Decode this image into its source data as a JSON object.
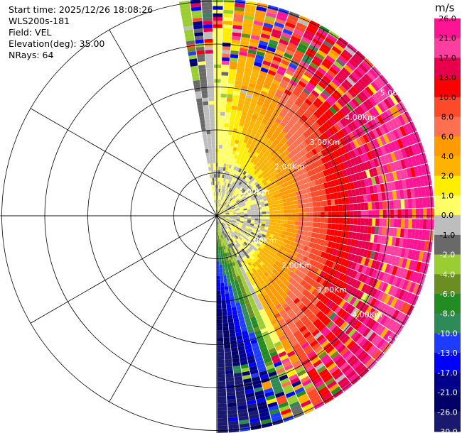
{
  "header": {
    "start_time": "Start time: 2025/12/26 18:08:26",
    "instrument": "WLS200s-181",
    "field": "Field: VEL",
    "elevation": "Elevation(deg): 35.00",
    "nrays": "NRays: 64"
  },
  "colorbar": {
    "unit": "m/s",
    "labels": [
      "26.0",
      "21.0",
      "17.0",
      "13.0",
      "10.0",
      "8.0",
      "6.0",
      "4.0",
      "2.0",
      "1.0",
      "0.0",
      "-1.0",
      "-2.0",
      "-4.0",
      "-6.0",
      "-8.0",
      "-10.0",
      "-13.0",
      "-17.0",
      "-21.0",
      "-26.0",
      "-30.0"
    ],
    "colors": [
      "#ff1493",
      "#ff3fa0",
      "#e8004c",
      "#ff0000",
      "#ff4a2a",
      "#ff7050",
      "#ff9a00",
      "#ffb300",
      "#ffee00",
      "#ffff66",
      "#bdbdbd",
      "#696969",
      "#9acd32",
      "#6b8e23",
      "#228b22",
      "#2e8b57",
      "#1e3cff",
      "#0000ff",
      "#00008b",
      "#000066",
      "#191970"
    ]
  },
  "chart_data": {
    "type": "heatmap",
    "subtype": "ppi_polar",
    "field": "VEL",
    "units": "m/s",
    "elevation_deg": 35.0,
    "nrays": 64,
    "azimuth_coverage_deg": [
      -10,
      180
    ],
    "range_ring_labels": [
      "1.00Km",
      "2.00Km",
      "3.00Km",
      "4.00Km",
      "5.00Km"
    ],
    "range_rings_km": [
      1,
      2,
      3,
      4,
      5
    ],
    "spoke_angles_deg": [
      0,
      30,
      60,
      90,
      120,
      150,
      180,
      210,
      240,
      270,
      300,
      330
    ],
    "color_scale_bounds": [
      -30,
      -26,
      -21,
      -17,
      -13,
      -10,
      -8,
      -6,
      -4,
      -2,
      -1,
      0,
      1,
      2,
      4,
      6,
      8,
      10,
      13,
      17,
      21,
      26
    ],
    "pattern": "near range 0 to 1 m/s (gray/olive), positive velocities increasing eastward (yellow→orange→red→pink), negative velocities to the south (green→blue)"
  }
}
